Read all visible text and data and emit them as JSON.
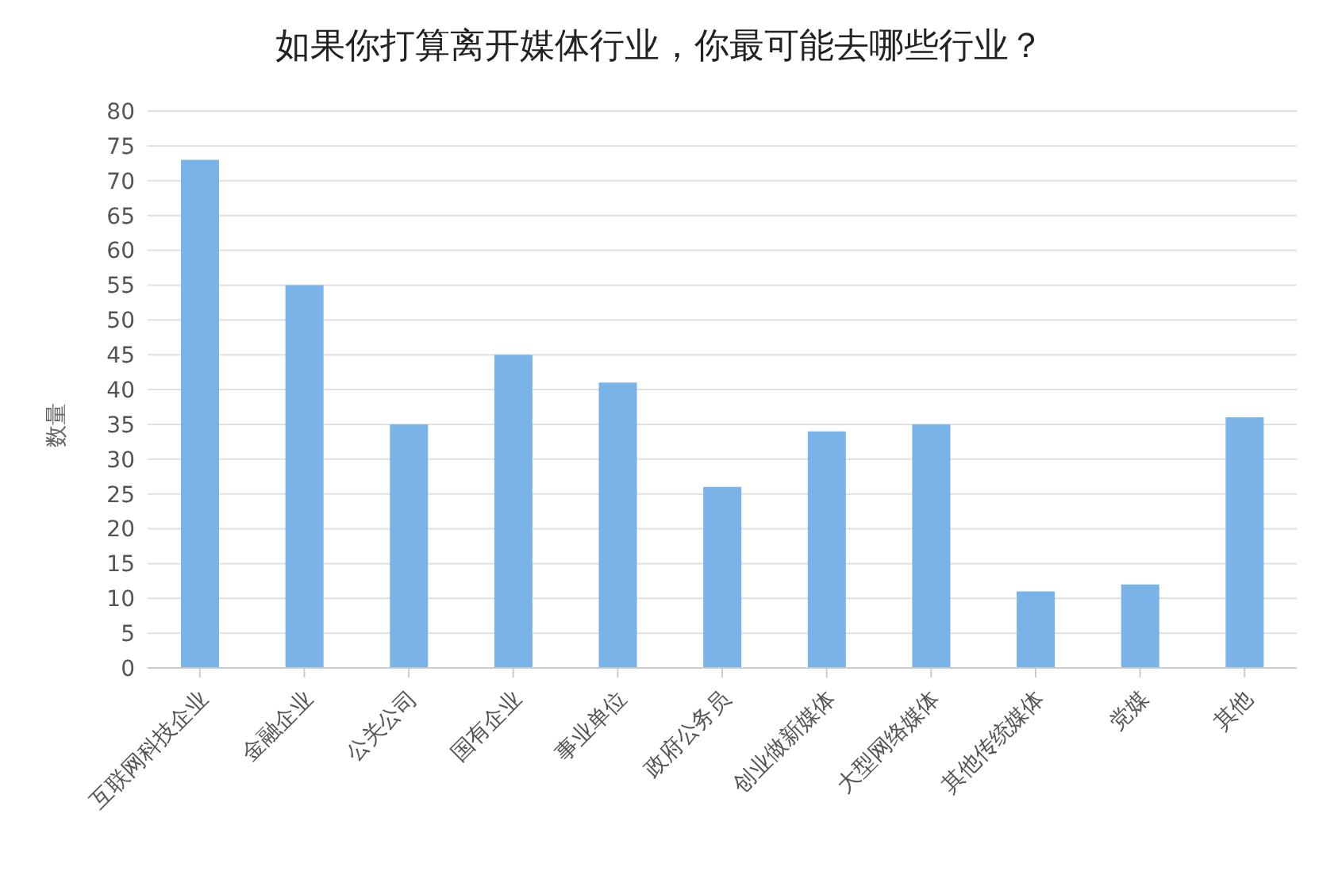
{
  "chart_data": {
    "type": "bar",
    "title": "如果你打算离开媒体行业，你最可能去哪些行业？",
    "ylabel": "数量",
    "categories": [
      "互联网科技企业",
      "金融企业",
      "公关公司",
      "国有企业",
      "事业单位",
      "政府公务员",
      "创业做新媒体",
      "大型网络媒体",
      "其他传统媒体",
      "党媒",
      "其他"
    ],
    "values": [
      73,
      55,
      35,
      45,
      41,
      26,
      34,
      35,
      11,
      12,
      36
    ],
    "color": "#7ab3e8",
    "ylim": [
      0,
      80
    ],
    "yticks": [
      0,
      5,
      10,
      15,
      20,
      25,
      30,
      35,
      40,
      45,
      50,
      55,
      60,
      65,
      70,
      75,
      80
    ],
    "grid": "y"
  }
}
